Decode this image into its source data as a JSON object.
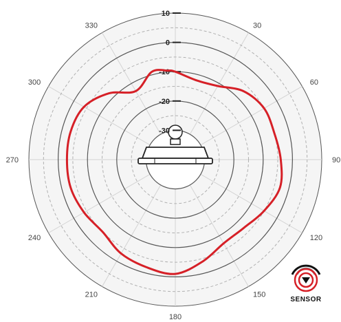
{
  "chart_data": {
    "type": "polar",
    "title": "",
    "angle_unit": "degrees",
    "angle_labels": [
      "330",
      "30",
      "300",
      "60",
      "270",
      "90",
      "240",
      "120",
      "210",
      "150",
      "180"
    ],
    "radial_tick_labels": [
      "10",
      "0",
      "-10",
      "-20",
      "-30"
    ],
    "radial_range": [
      -40,
      10
    ],
    "grid": true,
    "series": [
      {
        "color": "#d62027",
        "angles": [
          0,
          15,
          30,
          45,
          60,
          75,
          90,
          105,
          120,
          135,
          150,
          165,
          180,
          195,
          210,
          225,
          240,
          255,
          270,
          285,
          300,
          315,
          330,
          345,
          355
        ],
        "values": [
          -10,
          -12,
          -11,
          -7,
          -5,
          -5,
          -4,
          -3,
          -5,
          -7,
          -7,
          -4,
          -1,
          -2,
          -3,
          -5,
          -4,
          -3,
          -3,
          -3,
          -4,
          -8,
          -13,
          -9,
          -9.5
        ]
      }
    ]
  },
  "logo": {
    "text": "SENSOR",
    "accent": "#d62027",
    "dark": "#111111",
    "grey": "#8a8a8a"
  },
  "colors": {
    "grid_solid": "#555555",
    "grid_dashed": "#b0b0b0",
    "spokes": "#d4d4d4",
    "fill": "#f5f5f5",
    "series": "#d62027"
  }
}
